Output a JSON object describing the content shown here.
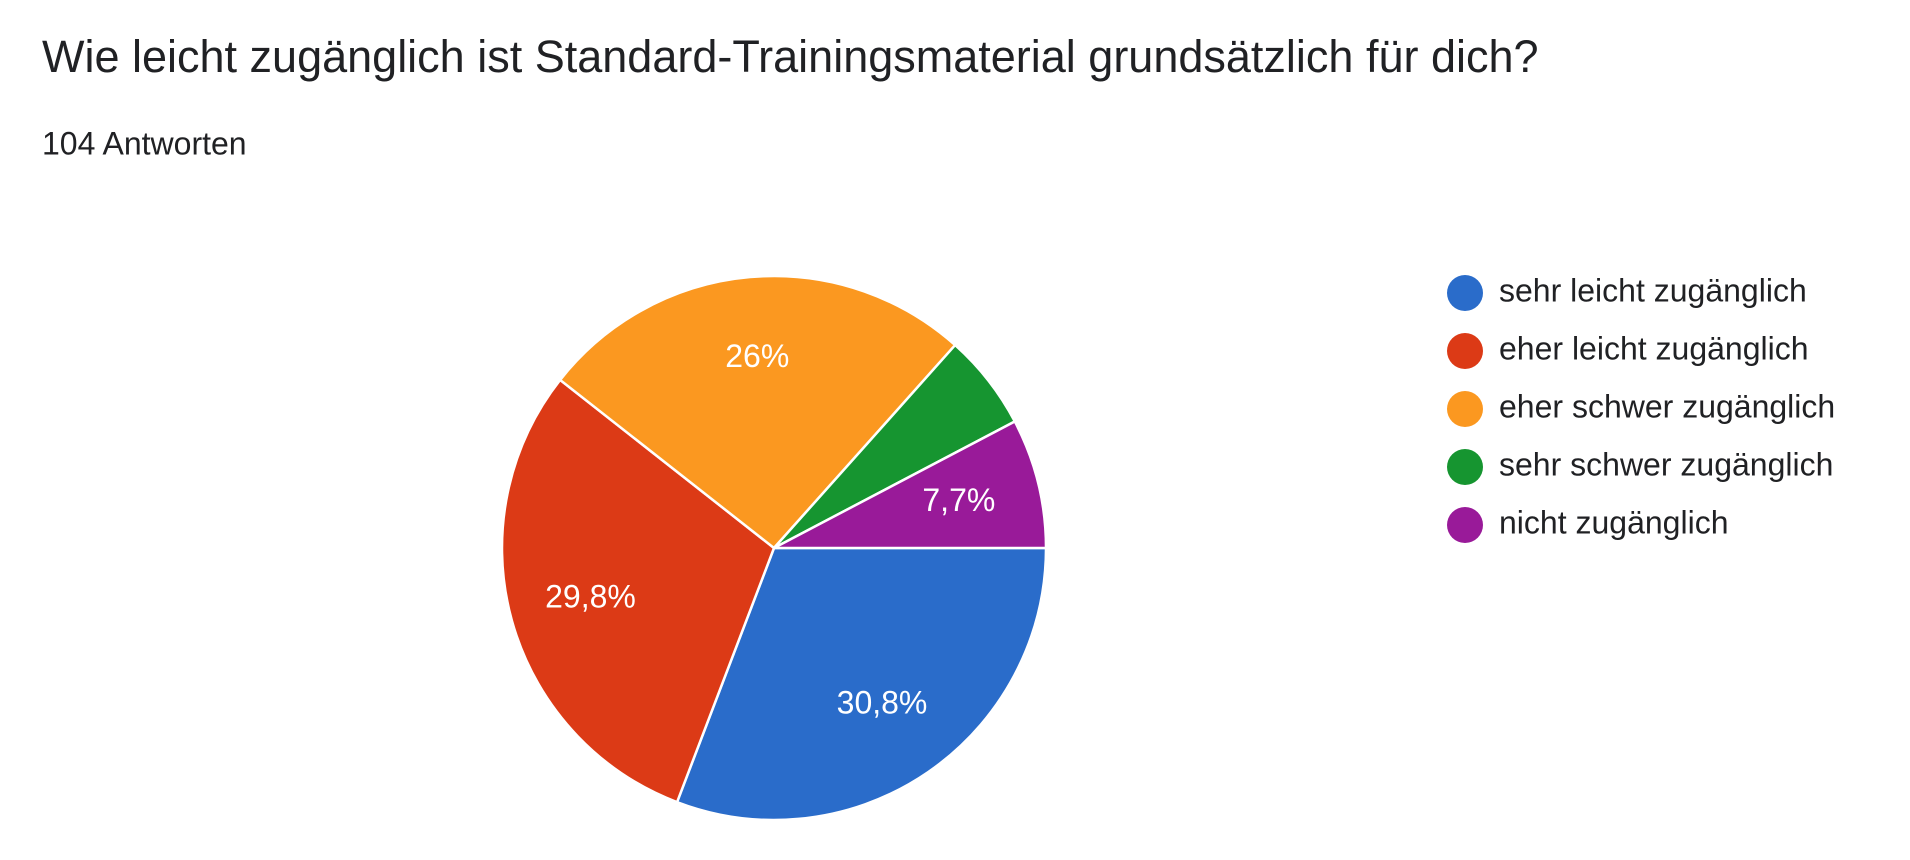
{
  "chart_data": {
    "type": "pie",
    "title": "Wie leicht zugänglich ist Standard-Trainingsmaterial grundsätzlich für dich?",
    "subtitle": "104 Antworten",
    "categories": [
      "sehr leicht zugänglich",
      "eher leicht zugänglich",
      "eher schwer zugänglich",
      "sehr schwer zugänglich",
      "nicht zugänglich"
    ],
    "values": [
      30.8,
      29.8,
      26,
      5.7,
      7.7
    ],
    "value_labels": [
      "30,8%",
      "29,8%",
      "26%",
      null,
      "7,7%"
    ],
    "colors": [
      "#2a6cca",
      "#dc3a16",
      "#fb9820",
      "#169530",
      "#991a99"
    ],
    "legend": "right"
  }
}
